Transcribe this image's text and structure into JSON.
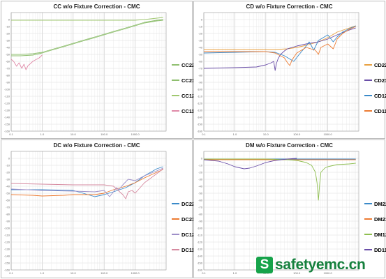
{
  "charts": [
    {
      "title": "CC w/o Fixture Correction - CMC",
      "ylim": [
        -160,
        10
      ],
      "y_ticks": [
        "0",
        "-10",
        "-20",
        "-30",
        "-40",
        "-50",
        "-60",
        "-70",
        "-80",
        "-90",
        "-100",
        "-110",
        "-120",
        "-130",
        "-140",
        "-150",
        "-160"
      ],
      "legend": [
        {
          "name": "CC22",
          "color": "#8fbf6f"
        },
        {
          "name": "CC21",
          "color": "#8fbf6f"
        },
        {
          "name": "CC12",
          "color": "#a0c870"
        },
        {
          "name": "CC11",
          "color": "#e08aa8"
        }
      ]
    },
    {
      "title": "CD w/o Fixture Correction - CMC",
      "ylim": [
        -160,
        10
      ],
      "y_ticks": [
        "0",
        "-10",
        "-20",
        "-30",
        "-40",
        "-50",
        "-60",
        "-70",
        "-80",
        "-90",
        "-100",
        "-110",
        "-120",
        "-130",
        "-140",
        "-150",
        "-160"
      ],
      "legend": [
        {
          "name": "CD22",
          "color": "#e8a040"
        },
        {
          "name": "CD21",
          "color": "#6a4ea8"
        },
        {
          "name": "CD12",
          "color": "#3b8ac9"
        },
        {
          "name": "CD11",
          "color": "#ec7b32"
        }
      ]
    },
    {
      "title": "DC w/o Fixture Correction - CMC",
      "ylim": [
        -160,
        10
      ],
      "y_ticks": [
        "0",
        "-10",
        "-20",
        "-30",
        "-40",
        "-50",
        "-60",
        "-70",
        "-80",
        "-90",
        "-100",
        "-110",
        "-120",
        "-130",
        "-140",
        "-150",
        "-160"
      ],
      "legend": [
        {
          "name": "DC22",
          "color": "#3b8ac9"
        },
        {
          "name": "DC21",
          "color": "#ec7b32"
        },
        {
          "name": "DC12",
          "color": "#9e8fc8"
        },
        {
          "name": "DC11",
          "color": "#d68aa0"
        }
      ]
    },
    {
      "title": "DM w/o Fixture Correction - CMC",
      "ylim": [
        -160,
        10
      ],
      "y_ticks": [
        "0",
        "-10",
        "-20",
        "-30",
        "-40",
        "-50",
        "-60",
        "-70",
        "-80",
        "-90",
        "-100",
        "-110",
        "-120",
        "-130",
        "-140",
        "-150",
        "-160"
      ],
      "legend": [
        {
          "name": "DM22",
          "color": "#3b8ac9"
        },
        {
          "name": "DM21",
          "color": "#ec7b32"
        },
        {
          "name": "DM12",
          "color": "#8fbf50"
        },
        {
          "name": "DD11",
          "color": "#6a4ea8"
        }
      ]
    }
  ],
  "chart_data": [
    {
      "type": "line",
      "title": "CC w/o Fixture Correction - CMC",
      "x_scale": "log",
      "xlim": [
        0.1,
        10000
      ],
      "x_ticks": [
        "0.1",
        "1.0",
        "10.0",
        "100.0",
        "1000.0"
      ],
      "ylim": [
        -160,
        10
      ],
      "series": [
        {
          "name": "CC22",
          "color": "#8fbf6f",
          "x": [
            0.1,
            0.2,
            0.5,
            1,
            2,
            5,
            10,
            20,
            50,
            100,
            200,
            500,
            1000,
            2000,
            5000,
            8000
          ],
          "y": [
            -50,
            -50,
            -49,
            -47,
            -43,
            -38,
            -34,
            -30,
            -25,
            -21,
            -17,
            -12,
            -8,
            -4,
            -1,
            0
          ]
        },
        {
          "name": "CC21",
          "color": "#8fbf6f",
          "x": [
            0.1,
            0.2,
            0.5,
            1,
            2,
            5,
            10,
            20,
            50,
            100,
            200,
            500,
            1000,
            2000,
            5000,
            8000
          ],
          "y": [
            -52,
            -52,
            -51,
            -48,
            -44,
            -39,
            -35,
            -31,
            -26,
            -22,
            -18,
            -13,
            -9,
            -5,
            -2,
            -1
          ]
        },
        {
          "name": "CC12",
          "color": "#a0c870",
          "x": [
            0.1,
            1,
            10,
            100,
            1000,
            2000,
            5000,
            8000
          ],
          "y": [
            -1,
            -1,
            -1,
            -1,
            -1,
            0,
            2,
            3
          ]
        },
        {
          "name": "CC11",
          "color": "#e08aa8",
          "x": [
            0.1,
            0.12,
            0.15,
            0.18,
            0.22,
            0.26,
            0.3,
            0.35,
            0.4,
            0.5,
            0.6,
            0.8,
            1
          ],
          "y": [
            -57,
            -60,
            -67,
            -62,
            -70,
            -64,
            -72,
            -66,
            -64,
            -60,
            -58,
            -55,
            -51
          ]
        }
      ]
    },
    {
      "type": "line",
      "title": "CD w/o Fixture Correction - CMC",
      "x_scale": "log",
      "xlim": [
        0.1,
        10000
      ],
      "x_ticks": [
        "0.1",
        "1.0",
        "10.0",
        "100.0",
        "1000.0"
      ],
      "ylim": [
        -160,
        10
      ],
      "series": [
        {
          "name": "CD22",
          "color": "#e8a040",
          "x": [
            0.1,
            1,
            10,
            20,
            50,
            100,
            200,
            500,
            1000,
            2000,
            5000,
            8000
          ],
          "y": [
            -43,
            -43,
            -43,
            -43,
            -42,
            -40,
            -37,
            -32,
            -26,
            -18,
            -12,
            -9
          ]
        },
        {
          "name": "CD21",
          "color": "#6a4ea8",
          "x": [
            0.1,
            1,
            5,
            10,
            15,
            18,
            20,
            22,
            25,
            30,
            40,
            50,
            100,
            200,
            500,
            1000,
            2000,
            5000,
            8000
          ],
          "y": [
            -70,
            -69,
            -68,
            -65,
            -62,
            -60,
            -73,
            -63,
            -56,
            -50,
            -45,
            -42,
            -38,
            -35,
            -32,
            -28,
            -22,
            -15,
            -12
          ]
        },
        {
          "name": "CD12",
          "color": "#3b8ac9",
          "x": [
            0.1,
            1,
            10,
            20,
            40,
            80,
            120,
            200,
            250,
            300,
            350,
            500,
            1000,
            1500,
            2000,
            3000,
            5000,
            8000
          ],
          "y": [
            -48,
            -47,
            -46,
            -47,
            -52,
            -60,
            -50,
            -38,
            -32,
            -38,
            -44,
            -30,
            -22,
            -32,
            -25,
            -18,
            -13,
            -9
          ]
        },
        {
          "name": "CD11",
          "color": "#ec7b32",
          "x": [
            0.1,
            1,
            10,
            20,
            40,
            50,
            60,
            70,
            100,
            200,
            400,
            500,
            600,
            1000,
            1500,
            2000,
            3000,
            5000,
            8000
          ],
          "y": [
            -46,
            -46,
            -46,
            -48,
            -55,
            -62,
            -66,
            -58,
            -48,
            -40,
            -44,
            -50,
            -40,
            -35,
            -42,
            -28,
            -20,
            -14,
            -10
          ]
        }
      ]
    },
    {
      "type": "line",
      "title": "DC w/o Fixture Correction - CMC",
      "x_scale": "log",
      "xlim": [
        0.1,
        10000
      ],
      "x_ticks": [
        "0.1",
        "1.0",
        "10.0",
        "100.0",
        "1000.0"
      ],
      "ylim": [
        -160,
        10
      ],
      "series": [
        {
          "name": "DC22",
          "color": "#3b8ac9",
          "x": [
            0.1,
            1,
            10,
            30,
            50,
            100,
            200,
            500,
            1000,
            2000,
            5000,
            8000
          ],
          "y": [
            -45,
            -45,
            -46,
            -52,
            -55,
            -52,
            -48,
            -42,
            -35,
            -25,
            -15,
            -12
          ]
        },
        {
          "name": "DC21",
          "color": "#ec7b32",
          "x": [
            0.1,
            0.5,
            1,
            5,
            10,
            20,
            50,
            100,
            200,
            500,
            1000,
            2000,
            5000,
            8000
          ],
          "y": [
            -52,
            -53,
            -54,
            -53,
            -52,
            -52,
            -52,
            -50,
            -45,
            -40,
            -35,
            -28,
            -20,
            -16
          ]
        },
        {
          "name": "DC12",
          "color": "#9e8fc8",
          "x": [
            0.1,
            1,
            10,
            50,
            100,
            150,
            200,
            250,
            300,
            400,
            600,
            1000,
            2000,
            5000,
            8000
          ],
          "y": [
            -44,
            -46,
            -47,
            -48,
            -46,
            -55,
            -48,
            -42,
            -45,
            -38,
            -30,
            -32,
            -25,
            -18,
            -14
          ]
        },
        {
          "name": "DC11",
          "color": "#d68aa0",
          "x": [
            0.1,
            1,
            10,
            50,
            100,
            200,
            400,
            500,
            600,
            800,
            1000,
            2000,
            5000,
            8000
          ],
          "y": [
            -36,
            -37,
            -38,
            -38,
            -38,
            -40,
            -52,
            -58,
            -48,
            -46,
            -50,
            -35,
            -22,
            -15
          ]
        }
      ]
    },
    {
      "type": "line",
      "title": "DM w/o Fixture Correction - CMC",
      "x_scale": "log",
      "xlim": [
        0.1,
        10000
      ],
      "x_ticks": [
        "0.1",
        "1.0",
        "10.0",
        "100.0",
        "1000.0"
      ],
      "ylim": [
        -160,
        10
      ],
      "series": [
        {
          "name": "DM22",
          "color": "#3b8ac9",
          "x": [
            0.1,
            1,
            10,
            100,
            1000,
            8000
          ],
          "y": [
            -1,
            -1,
            -1,
            -1,
            -1,
            -1
          ]
        },
        {
          "name": "DM21",
          "color": "#ec7b32",
          "x": [
            0.1,
            1,
            10,
            100,
            1000,
            8000
          ],
          "y": [
            -2,
            -2,
            -2,
            -2,
            -2,
            -2
          ]
        },
        {
          "name": "DM12",
          "color": "#8fbf50",
          "x": [
            0.1,
            1,
            10,
            50,
            100,
            200,
            300,
            400,
            450,
            500,
            550,
            600,
            800,
            1000,
            2000,
            5000,
            8000
          ],
          "y": [
            -1,
            -1,
            -1,
            -2,
            -3,
            -6,
            -10,
            -20,
            -35,
            -60,
            -35,
            -20,
            -14,
            -12,
            -9,
            -8,
            -7
          ]
        },
        {
          "name": "DD11",
          "color": "#6a4ea8",
          "x": [
            0.1,
            0.3,
            0.6,
            1,
            2,
            3,
            5,
            10,
            20,
            50,
            100
          ],
          "y": [
            -2,
            -4,
            -8,
            -12,
            -15,
            -14,
            -11,
            -6,
            -3,
            -1,
            0
          ]
        }
      ]
    }
  ],
  "watermark": {
    "icon": "S",
    "text": "safetyemc.cn"
  }
}
